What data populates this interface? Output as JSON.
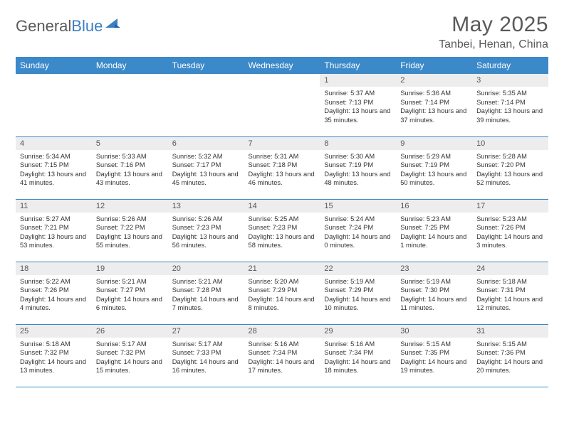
{
  "logo": {
    "part1": "General",
    "part2": "Blue"
  },
  "title": "May 2025",
  "location": "Tanbei, Henan, China",
  "colors": {
    "header_bg": "#3b89c9",
    "header_text": "#ffffff",
    "daynum_bg": "#ededed",
    "row_border": "#3b89c9",
    "logo_gray": "#5a5a5a",
    "logo_blue": "#3b7fc4",
    "body_text": "#333333",
    "page_bg": "#ffffff"
  },
  "day_headers": [
    "Sunday",
    "Monday",
    "Tuesday",
    "Wednesday",
    "Thursday",
    "Friday",
    "Saturday"
  ],
  "weeks": [
    [
      null,
      null,
      null,
      null,
      {
        "n": "1",
        "sr": "5:37 AM",
        "ss": "7:13 PM",
        "dl": "13 hours and 35 minutes."
      },
      {
        "n": "2",
        "sr": "5:36 AM",
        "ss": "7:14 PM",
        "dl": "13 hours and 37 minutes."
      },
      {
        "n": "3",
        "sr": "5:35 AM",
        "ss": "7:14 PM",
        "dl": "13 hours and 39 minutes."
      }
    ],
    [
      {
        "n": "4",
        "sr": "5:34 AM",
        "ss": "7:15 PM",
        "dl": "13 hours and 41 minutes."
      },
      {
        "n": "5",
        "sr": "5:33 AM",
        "ss": "7:16 PM",
        "dl": "13 hours and 43 minutes."
      },
      {
        "n": "6",
        "sr": "5:32 AM",
        "ss": "7:17 PM",
        "dl": "13 hours and 45 minutes."
      },
      {
        "n": "7",
        "sr": "5:31 AM",
        "ss": "7:18 PM",
        "dl": "13 hours and 46 minutes."
      },
      {
        "n": "8",
        "sr": "5:30 AM",
        "ss": "7:19 PM",
        "dl": "13 hours and 48 minutes."
      },
      {
        "n": "9",
        "sr": "5:29 AM",
        "ss": "7:19 PM",
        "dl": "13 hours and 50 minutes."
      },
      {
        "n": "10",
        "sr": "5:28 AM",
        "ss": "7:20 PM",
        "dl": "13 hours and 52 minutes."
      }
    ],
    [
      {
        "n": "11",
        "sr": "5:27 AM",
        "ss": "7:21 PM",
        "dl": "13 hours and 53 minutes."
      },
      {
        "n": "12",
        "sr": "5:26 AM",
        "ss": "7:22 PM",
        "dl": "13 hours and 55 minutes."
      },
      {
        "n": "13",
        "sr": "5:26 AM",
        "ss": "7:23 PM",
        "dl": "13 hours and 56 minutes."
      },
      {
        "n": "14",
        "sr": "5:25 AM",
        "ss": "7:23 PM",
        "dl": "13 hours and 58 minutes."
      },
      {
        "n": "15",
        "sr": "5:24 AM",
        "ss": "7:24 PM",
        "dl": "14 hours and 0 minutes."
      },
      {
        "n": "16",
        "sr": "5:23 AM",
        "ss": "7:25 PM",
        "dl": "14 hours and 1 minute."
      },
      {
        "n": "17",
        "sr": "5:23 AM",
        "ss": "7:26 PM",
        "dl": "14 hours and 3 minutes."
      }
    ],
    [
      {
        "n": "18",
        "sr": "5:22 AM",
        "ss": "7:26 PM",
        "dl": "14 hours and 4 minutes."
      },
      {
        "n": "19",
        "sr": "5:21 AM",
        "ss": "7:27 PM",
        "dl": "14 hours and 6 minutes."
      },
      {
        "n": "20",
        "sr": "5:21 AM",
        "ss": "7:28 PM",
        "dl": "14 hours and 7 minutes."
      },
      {
        "n": "21",
        "sr": "5:20 AM",
        "ss": "7:29 PM",
        "dl": "14 hours and 8 minutes."
      },
      {
        "n": "22",
        "sr": "5:19 AM",
        "ss": "7:29 PM",
        "dl": "14 hours and 10 minutes."
      },
      {
        "n": "23",
        "sr": "5:19 AM",
        "ss": "7:30 PM",
        "dl": "14 hours and 11 minutes."
      },
      {
        "n": "24",
        "sr": "5:18 AM",
        "ss": "7:31 PM",
        "dl": "14 hours and 12 minutes."
      }
    ],
    [
      {
        "n": "25",
        "sr": "5:18 AM",
        "ss": "7:32 PM",
        "dl": "14 hours and 13 minutes."
      },
      {
        "n": "26",
        "sr": "5:17 AM",
        "ss": "7:32 PM",
        "dl": "14 hours and 15 minutes."
      },
      {
        "n": "27",
        "sr": "5:17 AM",
        "ss": "7:33 PM",
        "dl": "14 hours and 16 minutes."
      },
      {
        "n": "28",
        "sr": "5:16 AM",
        "ss": "7:34 PM",
        "dl": "14 hours and 17 minutes."
      },
      {
        "n": "29",
        "sr": "5:16 AM",
        "ss": "7:34 PM",
        "dl": "14 hours and 18 minutes."
      },
      {
        "n": "30",
        "sr": "5:15 AM",
        "ss": "7:35 PM",
        "dl": "14 hours and 19 minutes."
      },
      {
        "n": "31",
        "sr": "5:15 AM",
        "ss": "7:36 PM",
        "dl": "14 hours and 20 minutes."
      }
    ]
  ],
  "labels": {
    "sunrise": "Sunrise:",
    "sunset": "Sunset:",
    "daylight": "Daylight:"
  }
}
